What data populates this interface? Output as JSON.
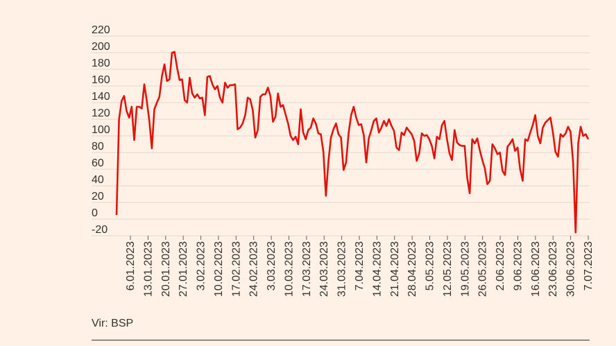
{
  "chart_data": {
    "type": "line",
    "title": "",
    "xlabel": "",
    "ylabel": "",
    "ylim": [
      -20,
      220
    ],
    "yticks": [
      220,
      200,
      180,
      160,
      140,
      120,
      100,
      80,
      60,
      40,
      20,
      0,
      -20
    ],
    "grid": true,
    "line_color": "#e3120b",
    "xtick_labels": [
      "6.01.2023",
      "13.01.2023",
      "20.01.2023",
      "27.01.2023",
      "3.02.2023",
      "10.02.2023",
      "17.02.2023",
      "24.02.2023",
      "3.03.2023",
      "10.03.2023",
      "17.03.2023",
      "24.03.2023",
      "31.03.2023",
      "7.04.2023",
      "14.04.2023",
      "21.04.2023",
      "28.04.2023",
      "5.05.2023",
      "12.05.2023",
      "19.05.2023",
      "26.05.2023",
      "2.06.2023",
      "9.06.2023",
      "16.06.2023",
      "23.06.2023",
      "30.06.2023",
      "7.07.2023"
    ],
    "series": [
      {
        "values": [
          5,
          120,
          142,
          148,
          130,
          122,
          135,
          95,
          135,
          135,
          133,
          162,
          142,
          118,
          85,
          132,
          140,
          147,
          172,
          186,
          166,
          168,
          200,
          201,
          182,
          167,
          168,
          143,
          140,
          170,
          151,
          146,
          150,
          145,
          146,
          125,
          171,
          172,
          162,
          156,
          160,
          146,
          140,
          164,
          158,
          161,
          161,
          162,
          108,
          110,
          115,
          125,
          146,
          144,
          131,
          98,
          107,
          147,
          150,
          150,
          158,
          148,
          117,
          123,
          151,
          135,
          137,
          126,
          115,
          100,
          95,
          99,
          90,
          132,
          104,
          96,
          107,
          110,
          121,
          115,
          103,
          102,
          81,
          28,
          70,
          98,
          108,
          115,
          102,
          98,
          59,
          68,
          103,
          125,
          135,
          122,
          113,
          114,
          101,
          68,
          97,
          107,
          118,
          121,
          104,
          110,
          118,
          112,
          120,
          112,
          106,
          86,
          83,
          104,
          101,
          110,
          106,
          102,
          94,
          70,
          79,
          103,
          100,
          101,
          96,
          88,
          73,
          99,
          96,
          113,
          118,
          96,
          79,
          71,
          107,
          92,
          89,
          88,
          88,
          50,
          31,
          96,
          91,
          97,
          83,
          71,
          61,
          42,
          46,
          90,
          85,
          78,
          80,
          58,
          53,
          87,
          91,
          96,
          82,
          86,
          60,
          46,
          96,
          94,
          104,
          113,
          125,
          100,
          91,
          110,
          116,
          119,
          122,
          104,
          81,
          75,
          102,
          99,
          103,
          111,
          105,
          68,
          -16,
          91,
          111,
          100,
          102,
          96
        ]
      }
    ]
  },
  "source": "Vir: BSP"
}
